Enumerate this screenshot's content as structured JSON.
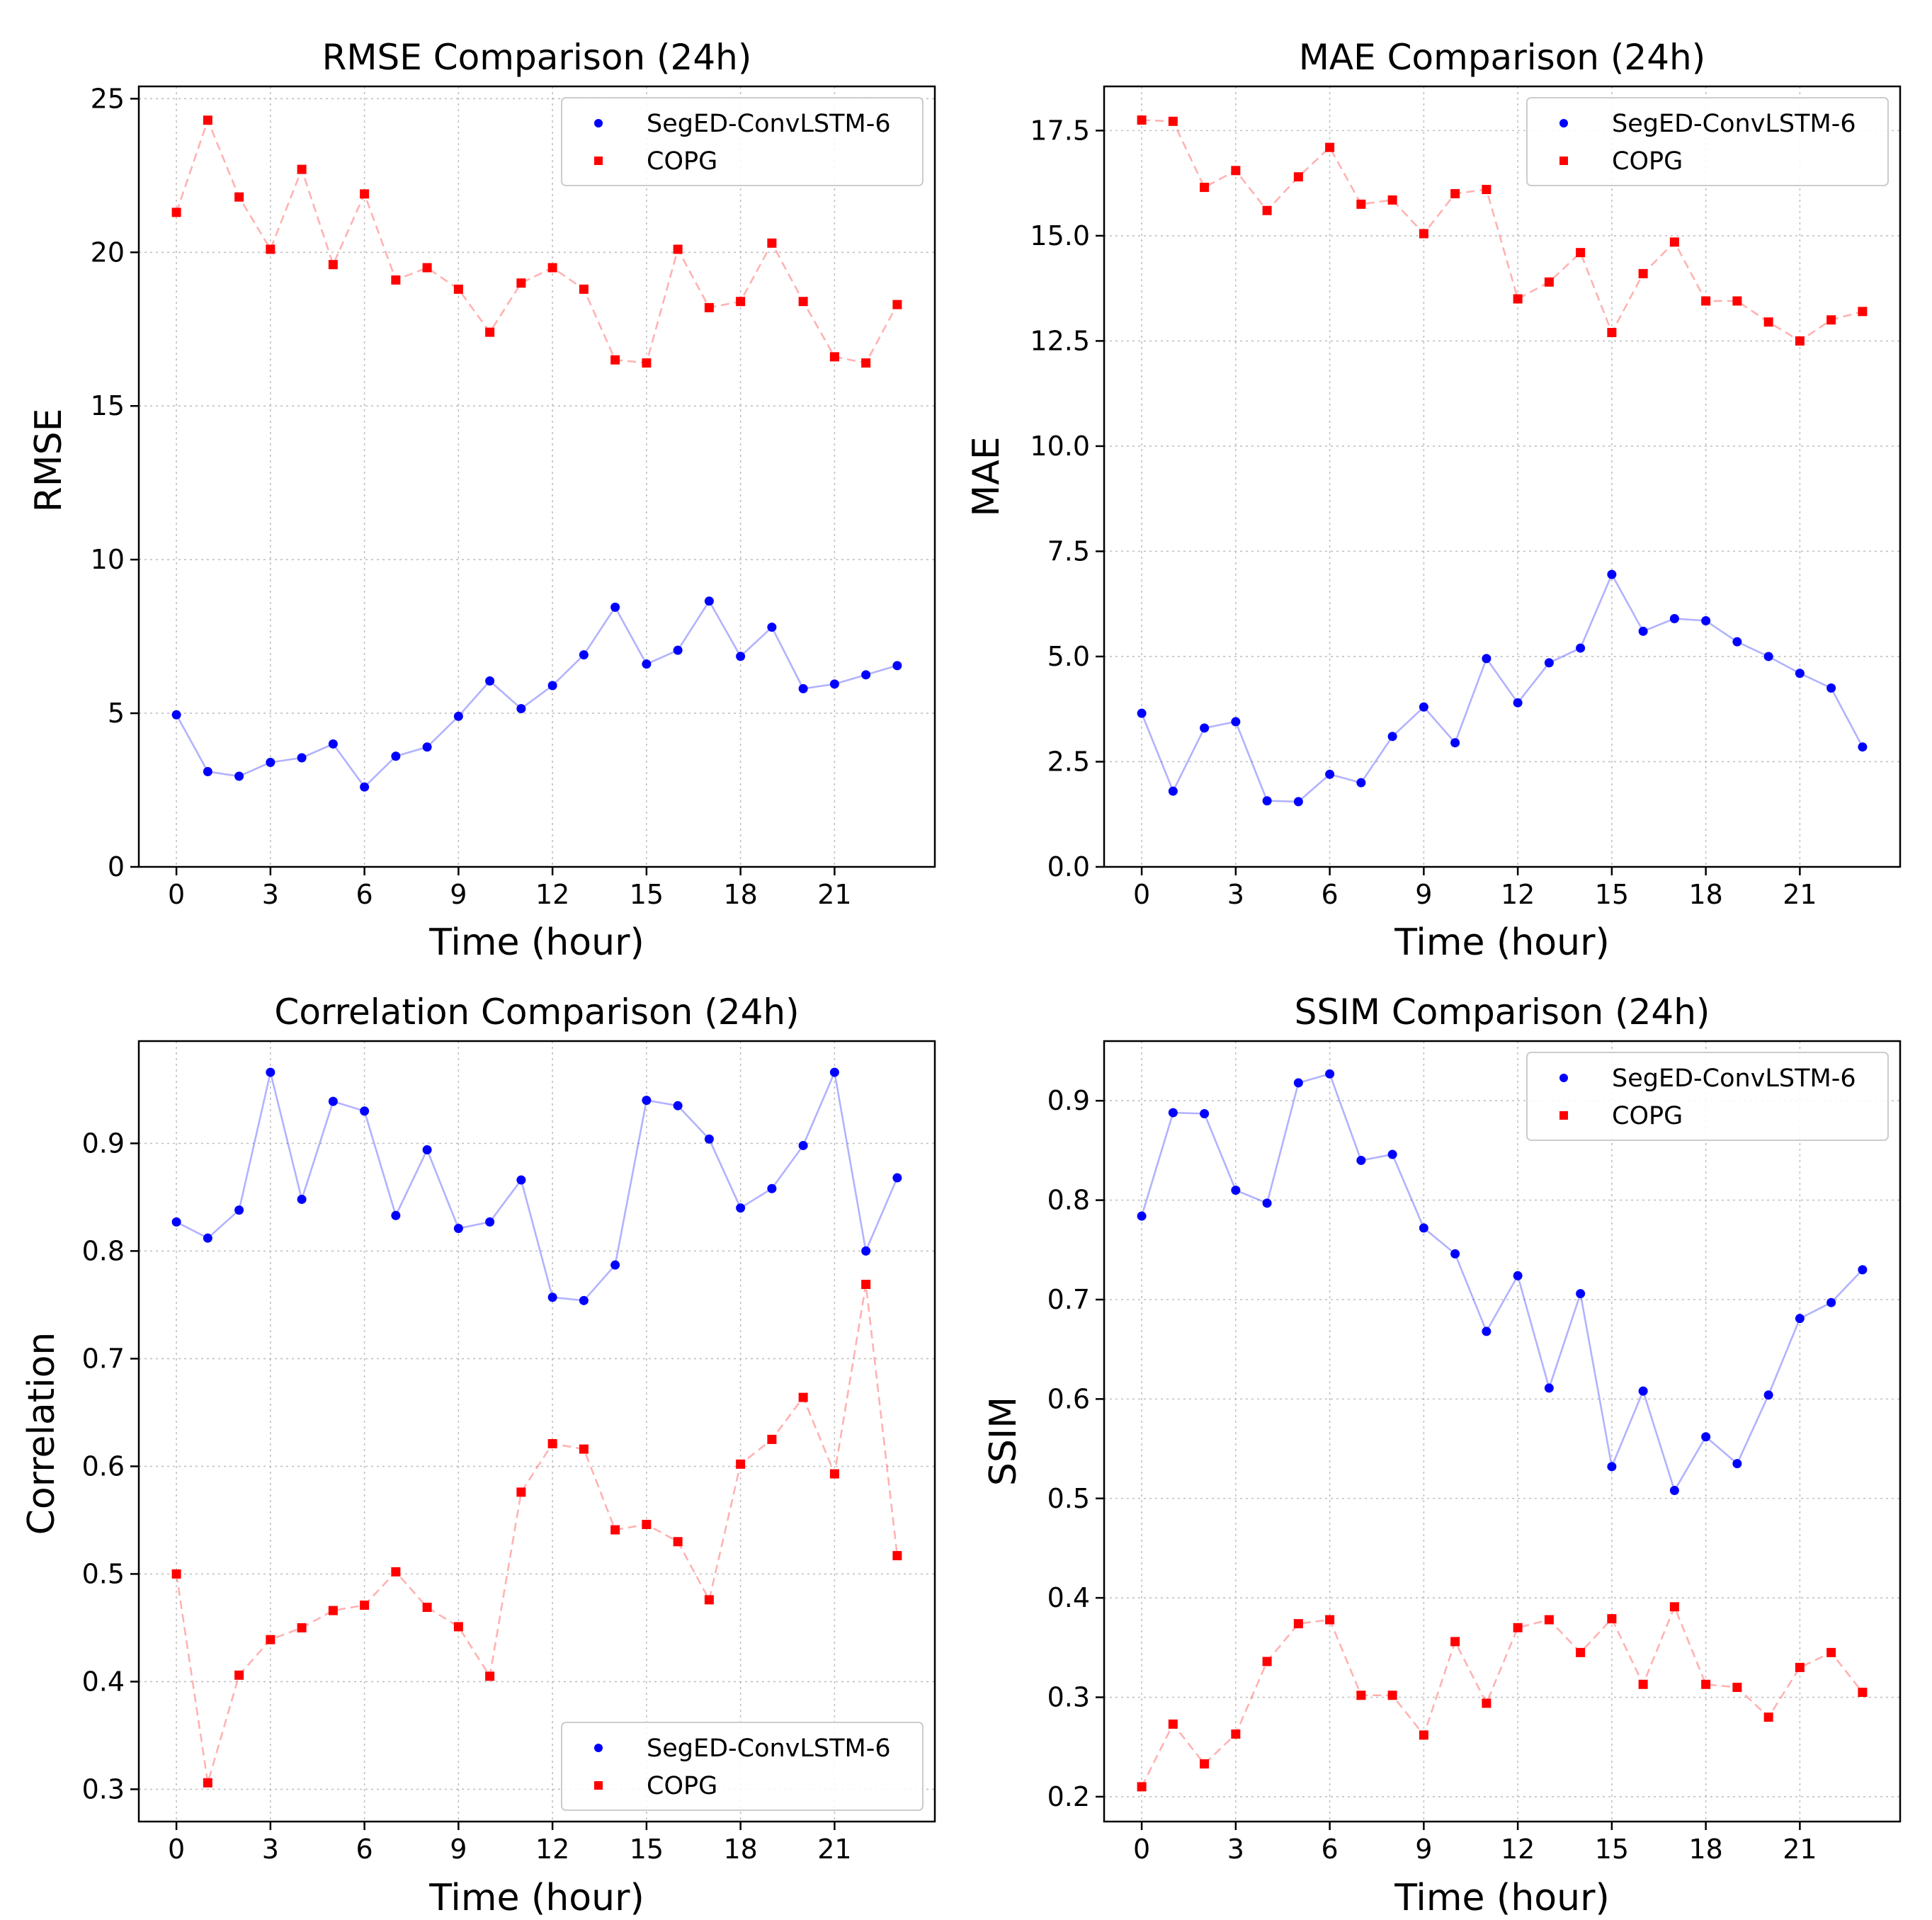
{
  "chart_data": [
    {
      "type": "line",
      "title": "RMSE Comparison (24h)",
      "xlabel": "Time (hour)",
      "ylabel": "RMSE",
      "xlim": [
        -1.2,
        24.2
      ],
      "ylim": [
        0,
        25.4
      ],
      "xticks": [
        0,
        3,
        6,
        9,
        12,
        15,
        18,
        21
      ],
      "yticks": [
        0,
        5,
        10,
        15,
        20,
        25
      ],
      "ytick_labels": [
        "0",
        "5",
        "10",
        "15",
        "20",
        "25"
      ],
      "grid": true,
      "legend_position": "top-right",
      "x": [
        0,
        1,
        2,
        3,
        4,
        5,
        6,
        7,
        8,
        9,
        10,
        11,
        12,
        13,
        14,
        15,
        16,
        17,
        18,
        19,
        20,
        21,
        22,
        23
      ],
      "series": [
        {
          "name": "SegED-ConvLSTM-6",
          "color": "#0000ff",
          "marker": "circle",
          "values": [
            4.95,
            3.1,
            2.95,
            3.4,
            3.55,
            4.0,
            2.6,
            3.6,
            3.9,
            4.9,
            6.05,
            5.15,
            5.9,
            6.9,
            8.45,
            6.6,
            7.05,
            8.65,
            6.85,
            7.8,
            5.8,
            5.95,
            6.25,
            6.55
          ]
        },
        {
          "name": "COPG",
          "color": "#ff0000",
          "marker": "square",
          "values": [
            21.3,
            24.3,
            21.8,
            20.1,
            22.7,
            19.6,
            21.9,
            19.1,
            19.5,
            18.8,
            17.4,
            19.0,
            19.5,
            18.8,
            16.5,
            16.4,
            20.1,
            18.2,
            18.4,
            20.3,
            18.4,
            16.6,
            16.4,
            18.3
          ]
        }
      ]
    },
    {
      "type": "line",
      "title": "MAE Comparison (24h)",
      "xlabel": "Time (hour)",
      "ylabel": "MAE",
      "xlim": [
        -1.2,
        24.2
      ],
      "ylim": [
        0,
        18.55
      ],
      "xticks": [
        0,
        3,
        6,
        9,
        12,
        15,
        18,
        21
      ],
      "yticks": [
        0,
        2.5,
        5,
        7.5,
        10,
        12.5,
        15,
        17.5
      ],
      "ytick_labels": [
        "0.0",
        "2.5",
        "5.0",
        "7.5",
        "10.0",
        "12.5",
        "15.0",
        "17.5"
      ],
      "grid": true,
      "legend_position": "top-right",
      "x": [
        0,
        1,
        2,
        3,
        4,
        5,
        6,
        7,
        8,
        9,
        10,
        11,
        12,
        13,
        14,
        15,
        16,
        17,
        18,
        19,
        20,
        21,
        22,
        23
      ],
      "series": [
        {
          "name": "SegED-ConvLSTM-6",
          "color": "#0000ff",
          "marker": "circle",
          "values": [
            3.65,
            1.8,
            3.3,
            3.45,
            1.57,
            1.55,
            2.2,
            2.0,
            3.1,
            3.8,
            2.95,
            4.95,
            3.9,
            4.85,
            5.2,
            6.95,
            5.6,
            5.9,
            5.85,
            5.35,
            5.0,
            4.6,
            4.25,
            2.85
          ]
        },
        {
          "name": "COPG",
          "color": "#ff0000",
          "marker": "square",
          "values": [
            17.75,
            17.72,
            16.15,
            16.55,
            15.6,
            16.4,
            17.1,
            15.75,
            15.85,
            15.05,
            16.0,
            16.1,
            13.5,
            13.9,
            14.6,
            12.7,
            14.1,
            14.85,
            13.45,
            13.45,
            12.95,
            12.5,
            13.0,
            13.2
          ]
        }
      ]
    },
    {
      "type": "line",
      "title": "Correlation Comparison (24h)",
      "xlabel": "Time (hour)",
      "ylabel": "Correlation",
      "xlim": [
        -1.2,
        24.2
      ],
      "ylim": [
        0.27,
        0.995
      ],
      "xticks": [
        0,
        3,
        6,
        9,
        12,
        15,
        18,
        21
      ],
      "yticks": [
        0.3,
        0.4,
        0.5,
        0.6,
        0.7,
        0.8,
        0.9
      ],
      "ytick_labels": [
        "0.3",
        "0.4",
        "0.5",
        "0.6",
        "0.7",
        "0.8",
        "0.9"
      ],
      "grid": true,
      "legend_position": "bottom-right",
      "x": [
        0,
        1,
        2,
        3,
        4,
        5,
        6,
        7,
        8,
        9,
        10,
        11,
        12,
        13,
        14,
        15,
        16,
        17,
        18,
        19,
        20,
        21,
        22,
        23
      ],
      "series": [
        {
          "name": "SegED-ConvLSTM-6",
          "color": "#0000ff",
          "marker": "circle",
          "values": [
            0.827,
            0.812,
            0.838,
            0.966,
            0.848,
            0.939,
            0.93,
            0.833,
            0.894,
            0.821,
            0.827,
            0.866,
            0.757,
            0.754,
            0.787,
            0.94,
            0.935,
            0.904,
            0.84,
            0.858,
            0.898,
            0.966,
            0.8,
            0.868
          ]
        },
        {
          "name": "COPG",
          "color": "#ff0000",
          "marker": "square",
          "values": [
            0.5,
            0.306,
            0.406,
            0.439,
            0.45,
            0.466,
            0.471,
            0.502,
            0.469,
            0.451,
            0.405,
            0.576,
            0.621,
            0.616,
            0.541,
            0.546,
            0.53,
            0.476,
            0.602,
            0.625,
            0.664,
            0.593,
            0.769,
            0.517
          ]
        }
      ]
    },
    {
      "type": "line",
      "title": "SSIM Comparison (24h)",
      "xlabel": "Time (hour)",
      "ylabel": "SSIM",
      "xlim": [
        -1.2,
        24.2
      ],
      "ylim": [
        0.175,
        0.96
      ],
      "xticks": [
        0,
        3,
        6,
        9,
        12,
        15,
        18,
        21
      ],
      "yticks": [
        0.2,
        0.3,
        0.4,
        0.5,
        0.6,
        0.7,
        0.8,
        0.9
      ],
      "ytick_labels": [
        "0.2",
        "0.3",
        "0.4",
        "0.5",
        "0.6",
        "0.7",
        "0.8",
        "0.9"
      ],
      "grid": true,
      "legend_position": "top-right",
      "x": [
        0,
        1,
        2,
        3,
        4,
        5,
        6,
        7,
        8,
        9,
        10,
        11,
        12,
        13,
        14,
        15,
        16,
        17,
        18,
        19,
        20,
        21,
        22,
        23
      ],
      "series": [
        {
          "name": "SegED-ConvLSTM-6",
          "color": "#0000ff",
          "marker": "circle",
          "values": [
            0.784,
            0.888,
            0.887,
            0.81,
            0.797,
            0.918,
            0.927,
            0.84,
            0.846,
            0.772,
            0.746,
            0.668,
            0.724,
            0.611,
            0.706,
            0.532,
            0.608,
            0.508,
            0.562,
            0.535,
            0.604,
            0.681,
            0.697,
            0.73
          ]
        },
        {
          "name": "COPG",
          "color": "#ff0000",
          "marker": "square",
          "values": [
            0.21,
            0.273,
            0.233,
            0.263,
            0.336,
            0.374,
            0.378,
            0.302,
            0.302,
            0.262,
            0.356,
            0.294,
            0.37,
            0.378,
            0.345,
            0.379,
            0.313,
            0.391,
            0.313,
            0.31,
            0.28,
            0.33,
            0.345,
            0.305
          ]
        }
      ]
    }
  ]
}
